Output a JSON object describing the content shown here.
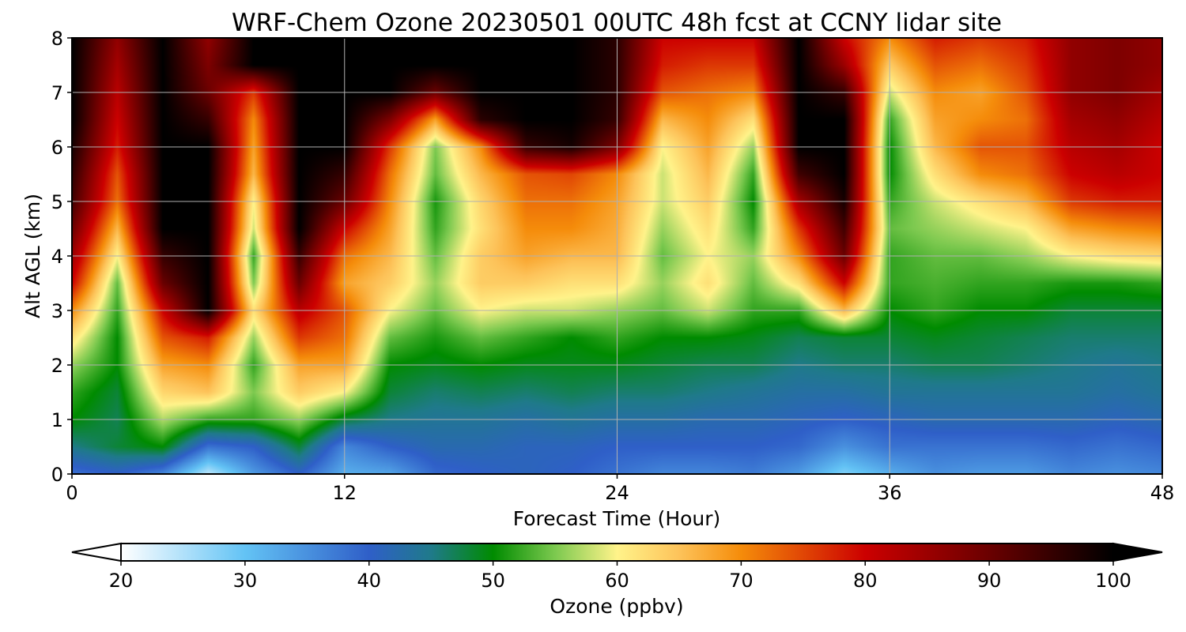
{
  "chart_data": {
    "type": "heatmap",
    "title": "WRF-Chem Ozone  20230501 00UTC 48h fcst at CCNY lidar site",
    "xlabel": "Forecast Time (Hour)",
    "ylabel": "Alt AGL (km)",
    "xlim": [
      0,
      48
    ],
    "ylim": [
      0,
      8
    ],
    "xticks": [
      0,
      12,
      24,
      36,
      48
    ],
    "xtick_labels": [
      "0",
      "12",
      "24",
      "36",
      "48"
    ],
    "yticks": [
      0,
      1,
      2,
      3,
      4,
      5,
      6,
      7,
      8
    ],
    "ytick_labels": [
      "0",
      "1",
      "2",
      "3",
      "4",
      "5",
      "6",
      "7",
      "8"
    ],
    "grid": true,
    "x_hours": [
      0,
      2,
      4,
      6,
      8,
      10,
      12,
      14,
      16,
      18,
      20,
      22,
      24,
      26,
      28,
      30,
      32,
      34,
      36,
      38,
      40,
      42,
      44,
      46,
      48
    ],
    "y_km": [
      0,
      0.5,
      1,
      1.5,
      2,
      2.5,
      3,
      3.5,
      4,
      4.5,
      5,
      5.5,
      6,
      6.5,
      7,
      7.5,
      8
    ],
    "z_ozone_ppbv": [
      [
        38,
        40,
        36,
        24,
        34,
        40,
        32,
        33,
        39,
        40,
        41,
        40,
        38,
        36,
        36,
        37,
        34,
        28,
        32,
        35,
        34,
        34,
        36,
        35,
        36
      ],
      [
        45,
        48,
        50,
        38,
        40,
        48,
        36,
        40,
        42,
        42,
        41,
        41,
        40,
        40,
        40,
        40,
        39,
        35,
        38,
        38,
        38,
        38,
        39,
        38,
        39
      ],
      [
        50,
        47,
        57,
        52,
        52,
        56,
        48,
        45,
        44,
        44,
        43,
        44,
        43,
        43,
        42,
        42,
        41,
        40,
        41,
        42,
        42,
        42,
        42,
        41,
        42
      ],
      [
        52,
        48,
        63,
        65,
        55,
        64,
        60,
        48,
        46,
        47,
        46,
        47,
        46,
        46,
        45,
        44,
        43,
        43,
        44,
        44,
        44,
        44,
        44,
        43,
        44
      ],
      [
        56,
        50,
        68,
        70,
        52,
        68,
        68,
        50,
        49,
        50,
        49,
        49,
        49,
        48,
        47,
        47,
        45,
        46,
        46,
        47,
        47,
        46,
        45,
        44,
        45
      ],
      [
        62,
        50,
        74,
        78,
        56,
        76,
        72,
        54,
        51,
        54,
        52,
        50,
        52,
        50,
        50,
        49,
        47,
        48,
        48,
        49,
        48,
        47,
        46,
        46,
        46
      ],
      [
        70,
        52,
        80,
        100,
        62,
        82,
        74,
        60,
        54,
        60,
        58,
        58,
        56,
        54,
        58,
        52,
        52,
        66,
        50,
        52,
        50,
        50,
        48,
        48,
        48
      ],
      [
        80,
        54,
        90,
        100,
        55,
        90,
        68,
        64,
        56,
        64,
        64,
        62,
        62,
        56,
        62,
        54,
        62,
        80,
        52,
        53,
        52,
        52,
        51,
        51,
        52
      ],
      [
        85,
        60,
        95,
        100,
        52,
        95,
        72,
        66,
        54,
        64,
        68,
        66,
        66,
        54,
        60,
        56,
        70,
        90,
        52,
        54,
        54,
        56,
        60,
        62,
        63
      ],
      [
        90,
        66,
        100,
        100,
        58,
        100,
        80,
        68,
        52,
        62,
        70,
        70,
        67,
        56,
        62,
        52,
        76,
        94,
        54,
        56,
        58,
        60,
        68,
        70,
        71
      ],
      [
        94,
        72,
        100,
        100,
        60,
        100,
        90,
        70,
        51,
        63,
        72,
        72,
        68,
        58,
        64,
        50,
        84,
        98,
        52,
        58,
        62,
        66,
        76,
        78,
        78
      ],
      [
        96,
        74,
        100,
        100,
        66,
        100,
        95,
        72,
        54,
        66,
        74,
        75,
        70,
        58,
        66,
        52,
        94,
        100,
        50,
        62,
        70,
        72,
        80,
        82,
        80
      ],
      [
        98,
        78,
        100,
        100,
        68,
        100,
        100,
        76,
        55,
        70,
        95,
        98,
        88,
        60,
        68,
        56,
        100,
        100,
        50,
        66,
        74,
        74,
        82,
        84,
        80
      ],
      [
        100,
        80,
        100,
        95,
        70,
        100,
        100,
        88,
        68,
        96,
        100,
        100,
        95,
        66,
        70,
        62,
        100,
        100,
        52,
        68,
        70,
        72,
        84,
        86,
        82
      ],
      [
        100,
        82,
        100,
        90,
        76,
        100,
        100,
        100,
        90,
        100,
        100,
        100,
        96,
        74,
        72,
        70,
        100,
        95,
        58,
        70,
        68,
        74,
        86,
        88,
        84
      ],
      [
        100,
        84,
        100,
        88,
        100,
        100,
        100,
        100,
        100,
        100,
        100,
        100,
        96,
        78,
        76,
        76,
        100,
        85,
        64,
        74,
        72,
        76,
        86,
        88,
        86
      ],
      [
        100,
        86,
        100,
        86,
        100,
        100,
        100,
        100,
        100,
        100,
        100,
        100,
        96,
        80,
        80,
        80,
        100,
        80,
        70,
        78,
        76,
        78,
        86,
        88,
        86
      ]
    ],
    "colorbar": {
      "label": "Ozone  (ppbv)",
      "min": 20,
      "max": 100,
      "extend": "both",
      "ticks": [
        20,
        30,
        40,
        50,
        60,
        70,
        80,
        90,
        100
      ],
      "tick_labels": [
        "20",
        "30",
        "40",
        "50",
        "60",
        "70",
        "80",
        "90",
        "100"
      ],
      "color_stops": [
        {
          "value": 20,
          "color": "#ffffff"
        },
        {
          "value": 30,
          "color": "#63c3f5"
        },
        {
          "value": 40,
          "color": "#2f5fc8"
        },
        {
          "value": 45,
          "color": "#1f7a8a"
        },
        {
          "value": 50,
          "color": "#008b00"
        },
        {
          "value": 55,
          "color": "#7cc94f"
        },
        {
          "value": 60,
          "color": "#fff38a"
        },
        {
          "value": 65,
          "color": "#fdc35a"
        },
        {
          "value": 70,
          "color": "#f58c0a"
        },
        {
          "value": 80,
          "color": "#cc0000"
        },
        {
          "value": 90,
          "color": "#6a0000"
        },
        {
          "value": 100,
          "color": "#000000"
        }
      ]
    }
  }
}
